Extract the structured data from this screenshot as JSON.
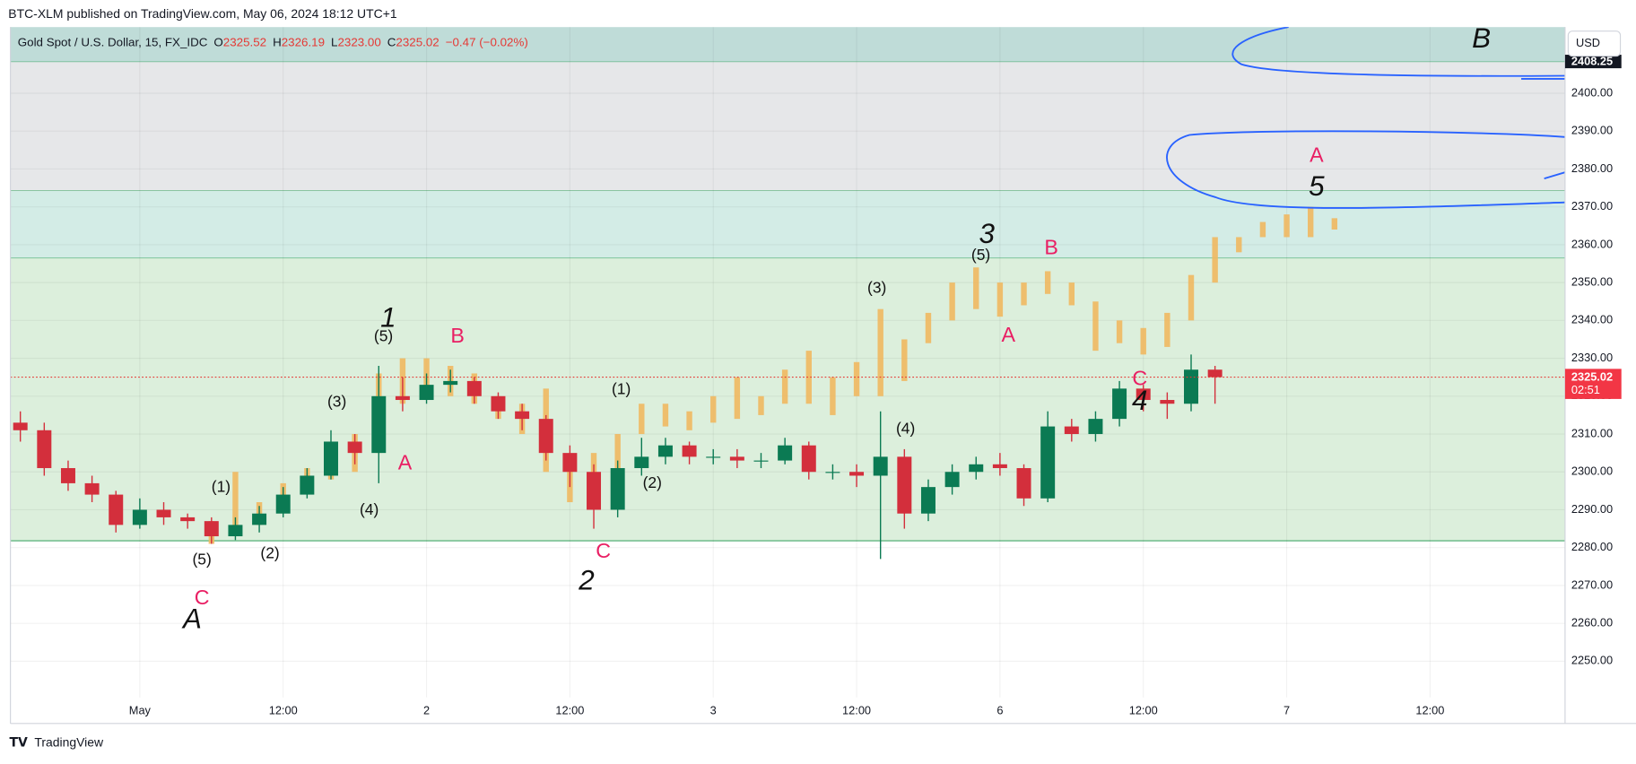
{
  "chart_data": {
    "type": "candlestick",
    "attribution": "BTC-XLM published on TradingView.com, May 06, 2024 18:12 UTC+1",
    "title": "Gold Spot / U.S. Dollar, 15, FX_IDC",
    "legend": [
      {
        "label": "O",
        "value": "2325.52"
      },
      {
        "label": "H",
        "value": "2326.19"
      },
      {
        "label": "L",
        "value": "2323.00"
      },
      {
        "label": "C",
        "value": "2325.02"
      }
    ],
    "change": "−0.47 (−0.02%)",
    "currency": "USD",
    "countdown": "02:51",
    "footer": "TradingView",
    "up_color": "#0b7a53",
    "down_color": "#d32f3c",
    "x": [
      -10,
      -8,
      -6,
      -4,
      -2,
      0,
      2,
      4,
      6,
      8,
      10,
      12,
      14,
      16,
      18,
      20,
      22,
      24,
      26,
      28,
      30,
      32,
      34,
      36,
      38,
      40,
      42,
      44,
      46,
      48,
      50,
      52,
      54,
      56,
      58,
      60,
      62,
      64,
      66,
      68,
      70,
      72,
      74,
      76,
      78,
      80,
      82,
      84,
      86,
      88,
      90
    ],
    "open": [
      2313,
      2311,
      2301,
      2297,
      2294,
      2286,
      2290,
      2288,
      2287,
      2283,
      2286,
      2289,
      2294,
      2299,
      2308,
      2305,
      2320,
      2319,
      2323,
      2324,
      2320,
      2316,
      2314,
      2305,
      2300,
      2290,
      2301,
      2304,
      2307,
      2304,
      2304,
      2303,
      2303,
      2307,
      2300,
      2300,
      2299,
      2304,
      2289,
      2296,
      2300,
      2302,
      2301,
      2293,
      2312,
      2310,
      2314,
      2322,
      2319,
      2318,
      2327
    ],
    "high": [
      2316,
      2313,
      2303,
      2299,
      2295,
      2293,
      2292,
      2289,
      2288,
      2288,
      2291,
      2296,
      2301,
      2311,
      2310,
      2328,
      2325,
      2326,
      2327,
      2325,
      2321,
      2318,
      2315,
      2307,
      2302,
      2303,
      2309,
      2309,
      2308,
      2306,
      2306,
      2305,
      2309,
      2308,
      2302,
      2302,
      2316,
      2306,
      2298,
      2302,
      2304,
      2305,
      2302,
      2316,
      2314,
      2316,
      2324,
      2323,
      2321,
      2331,
      2328
    ],
    "low": [
      2308,
      2299,
      2295,
      2292,
      2284,
      2285,
      2286,
      2285,
      2281,
      2282,
      2284,
      2288,
      2293,
      2298,
      2302,
      2297,
      2316,
      2318,
      2321,
      2318,
      2314,
      2311,
      2303,
      2296,
      2285,
      2288,
      2299,
      2302,
      2302,
      2302,
      2301,
      2301,
      2302,
      2298,
      2298,
      2296,
      2277,
      2285,
      2287,
      2294,
      2298,
      2299,
      2291,
      2292,
      2308,
      2308,
      2312,
      2316,
      2314,
      2316,
      2318
    ],
    "close": [
      2311,
      2301,
      2297,
      2294,
      2286,
      2290,
      2288,
      2287,
      2283,
      2286,
      2289,
      2294,
      2299,
      2308,
      2305,
      2320,
      2319,
      2323,
      2324,
      2320,
      2316,
      2314,
      2305,
      2300,
      2290,
      2301,
      2304,
      2307,
      2304,
      2304,
      2303,
      2303,
      2307,
      2300,
      2300,
      2299,
      2304,
      2289,
      2296,
      2300,
      2302,
      2301,
      2293,
      2312,
      2310,
      2314,
      2322,
      2319,
      2318,
      2327,
      2325.02
    ],
    "projection": {
      "color": "#f0b860",
      "x": [
        6,
        8,
        10,
        12,
        14,
        16,
        18,
        20,
        22,
        24,
        26,
        28,
        30,
        32,
        34,
        36,
        38,
        40,
        42,
        44,
        46,
        48,
        50,
        52,
        54,
        56,
        58,
        60,
        62,
        64,
        66,
        68,
        70,
        72,
        74,
        76,
        78,
        80,
        82,
        84,
        86,
        88,
        90,
        92,
        94,
        96,
        98,
        100
      ],
      "low": [
        2281,
        2284,
        2286,
        2292,
        2296,
        2298,
        2300,
        2305,
        2318,
        2322,
        2320,
        2318,
        2314,
        2310,
        2300,
        2292,
        2295,
        2300,
        2310,
        2312,
        2311,
        2313,
        2314,
        2315,
        2318,
        2318,
        2315,
        2320,
        2320,
        2324,
        2334,
        2340,
        2343,
        2341,
        2344,
        2347,
        2344,
        2332,
        2334,
        2331,
        2333,
        2340,
        2350,
        2358,
        2362,
        2362,
        2362,
        2364
      ],
      "high": [
        2287,
        2300,
        2292,
        2297,
        2301,
        2305,
        2310,
        2326,
        2330,
        2330,
        2328,
        2326,
        2320,
        2318,
        2322,
        2302,
        2305,
        2310,
        2318,
        2318,
        2316,
        2320,
        2325,
        2320,
        2327,
        2332,
        2325,
        2329,
        2343,
        2335,
        2342,
        2350,
        2354,
        2350,
        2350,
        2353,
        2350,
        2345,
        2340,
        2338,
        2342,
        2352,
        2362,
        2362,
        2366,
        2368,
        2370,
        2367
      ]
    },
    "zones": [
      {
        "from": 2408.25,
        "to": 2417.5,
        "color": "#bfdcd8"
      },
      {
        "from": 2374.2,
        "to": 2408.25,
        "color": "#e6e7e9"
      },
      {
        "from": 2356.4,
        "to": 2374.2,
        "color": "#d3ece6"
      },
      {
        "from": 2281.8,
        "to": 2356.4,
        "color": "#dcefdc"
      }
    ],
    "annotations": [
      {
        "text": "1",
        "x": 20.8,
        "y": 2340.2,
        "color": "#111111"
      },
      {
        "text": "(5)",
        "x": 20.4,
        "y": 2335.6,
        "color": "#111111"
      },
      {
        "text": "B",
        "x": 26.6,
        "y": 2335.6,
        "color": "#e91e63"
      },
      {
        "text": "(3)",
        "x": 16.5,
        "y": 2318.3,
        "color": "#111111"
      },
      {
        "text": "A",
        "x": 22.2,
        "y": 2302.1,
        "color": "#e91e63"
      },
      {
        "text": "(4)",
        "x": 19.2,
        "y": 2289.8,
        "color": "#111111"
      },
      {
        "text": "(1)",
        "x": 6.8,
        "y": 2295.8,
        "color": "#111111"
      },
      {
        "text": "(5)",
        "x": 5.2,
        "y": 2276.6,
        "color": "#111111"
      },
      {
        "text": "(2)",
        "x": 10.9,
        "y": 2278.3,
        "color": "#111111"
      },
      {
        "text": "C",
        "x": 5.2,
        "y": 2266.5,
        "color": "#e91e63"
      },
      {
        "text": "A",
        "x": 4.4,
        "y": 2260.7,
        "color": "#111111"
      },
      {
        "text": "(1)",
        "x": 40.3,
        "y": 2321.6,
        "color": "#111111"
      },
      {
        "text": "(2)",
        "x": 42.9,
        "y": 2296.9,
        "color": "#111111"
      },
      {
        "text": "C",
        "x": 38.8,
        "y": 2278.8,
        "color": "#e91e63"
      },
      {
        "text": "2",
        "x": 37.4,
        "y": 2270.9,
        "color": "#111111"
      },
      {
        "text": "(3)",
        "x": 61.7,
        "y": 2348.4,
        "color": "#111111"
      },
      {
        "text": "(4)",
        "x": 64.1,
        "y": 2311.2,
        "color": "#111111"
      },
      {
        "text": "3",
        "x": 70.9,
        "y": 2362.4,
        "color": "#111111"
      },
      {
        "text": "(5)",
        "x": 70.4,
        "y": 2357.0,
        "color": "#111111"
      },
      {
        "text": "A",
        "x": 72.7,
        "y": 2335.8,
        "color": "#e91e63"
      },
      {
        "text": "B",
        "x": 76.3,
        "y": 2358.9,
        "color": "#e91e63"
      },
      {
        "text": "C",
        "x": 83.7,
        "y": 2324.3,
        "color": "#e91e63"
      },
      {
        "text": "4",
        "x": 83.7,
        "y": 2318.3,
        "color": "#111111"
      },
      {
        "text": "5",
        "x": 98.5,
        "y": 2375.0,
        "color": "#111111"
      },
      {
        "text": "A",
        "x": 98.5,
        "y": 2383.3,
        "color": "#e91e63"
      },
      {
        "text": "B",
        "x": 112.3,
        "y": 2414.0,
        "color": "#111111"
      }
    ],
    "xlim": [
      -10.83,
      119.3
    ],
    "ylim": [
      2240.4,
      2417.5
    ],
    "xticks": [
      {
        "value": 0,
        "label": "May"
      },
      {
        "value": 12,
        "label": "12:00"
      },
      {
        "value": 24,
        "label": "2"
      },
      {
        "value": 36,
        "label": "12:00"
      },
      {
        "value": 48,
        "label": "3"
      },
      {
        "value": 60,
        "label": "12:00"
      },
      {
        "value": 72,
        "label": "6"
      },
      {
        "value": 84,
        "label": "12:00"
      },
      {
        "value": 96,
        "label": "7"
      },
      {
        "value": 108,
        "label": "12:00"
      }
    ],
    "yticks": [
      {
        "value": 2250,
        "label": "2250.00"
      },
      {
        "value": 2260,
        "label": "2260.00"
      },
      {
        "value": 2270,
        "label": "2270.00"
      },
      {
        "value": 2280,
        "label": "2280.00"
      },
      {
        "value": 2290,
        "label": "2290.00"
      },
      {
        "value": 2300,
        "label": "2300.00"
      },
      {
        "value": 2310,
        "label": "2310.00"
      },
      {
        "value": 2320,
        "label": "2320.00"
      },
      {
        "value": 2330,
        "label": "2330.00"
      },
      {
        "value": 2340,
        "label": "2340.00"
      },
      {
        "value": 2350,
        "label": "2350.00"
      },
      {
        "value": 2360,
        "label": "2360.00"
      },
      {
        "value": 2370,
        "label": "2370.00"
      },
      {
        "value": 2380,
        "label": "2380.00"
      },
      {
        "value": 2390,
        "label": "2390.00"
      },
      {
        "value": 2400,
        "label": "2400.00"
      }
    ],
    "grid": true
  }
}
